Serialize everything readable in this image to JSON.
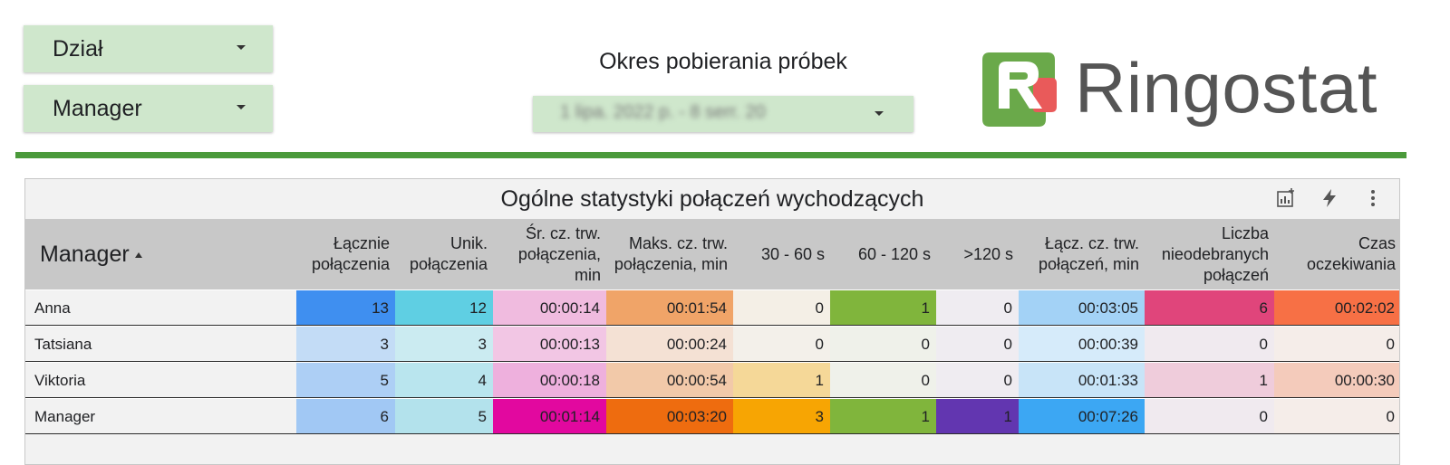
{
  "filters": {
    "department": {
      "label": "Dział"
    },
    "manager": {
      "label": "Manager"
    }
  },
  "period": {
    "label": "Okres pobierania próbek",
    "value": "1 lipa. 2022 p. - 8 serr. 20"
  },
  "logo": {
    "text": "Ringostat",
    "colors": {
      "green": "#6aa94a",
      "red": "#e95a5a"
    }
  },
  "accent_color": "#4b9a3b",
  "table": {
    "title": "Ogólne statystyki połączeń wychodzących",
    "toolbar_icons": [
      "chart-explore-icon",
      "lightning-icon",
      "more-vert-icon"
    ],
    "sort": {
      "column": "Manager",
      "direction": "ascending"
    },
    "columns": [
      "Manager",
      "Łącznie połączenia",
      "Unik. połączenia",
      "Śr. cz. trw. połączenia, min",
      "Maks. cz. trw. połączenia, min",
      "30 - 60 s",
      "60 - 120 s",
      ">120 s",
      "Łącz. cz. trw. połączeń, min",
      "Liczba nieodebranych połączeń",
      "Czas oczekiwania"
    ],
    "rows": [
      {
        "cells": [
          "Anna",
          "13",
          "12",
          "00:00:14",
          "00:01:54",
          "0",
          "1",
          "0",
          "00:03:05",
          "6",
          "00:02:02"
        ],
        "colors": [
          "",
          "#3f8ff0",
          "#5fcfe3",
          "#f0bbdf",
          "#f0a468",
          "#f4efe6",
          "#80b53c",
          "#efecf1",
          "#a3d2f6",
          "#e0457b",
          "#f77045"
        ]
      },
      {
        "cells": [
          "Tatsiana",
          "3",
          "3",
          "00:00:13",
          "00:00:24",
          "0",
          "0",
          "0",
          "00:00:39",
          "0",
          "0"
        ],
        "colors": [
          "",
          "#c3dcf6",
          "#cbebf1",
          "#f2c6e4",
          "#f4e1d4",
          "#f3f0ea",
          "#eff1ea",
          "#efecf1",
          "#d6ebfa",
          "#f0eaef",
          "#f5ede9"
        ]
      },
      {
        "cells": [
          "Viktoria",
          "5",
          "4",
          "00:00:18",
          "00:00:54",
          "1",
          "0",
          "0",
          "00:01:33",
          "1",
          "00:00:30"
        ],
        "colors": [
          "",
          "#adcff5",
          "#b9e5ee",
          "#eeb0dd",
          "#f2c9a9",
          "#f5d898",
          "#eff1ea",
          "#efecf1",
          "#c8e4f8",
          "#efccdb",
          "#f4cbbb"
        ]
      },
      {
        "cells": [
          "Manager",
          "6",
          "5",
          "00:01:14",
          "00:03:20",
          "3",
          "1",
          "1",
          "00:07:26",
          "0",
          "0"
        ],
        "colors": [
          "",
          "#a1c8f4",
          "#b3e2ec",
          "#e2089f",
          "#ee6c0f",
          "#f7a503",
          "#80b53c",
          "#6236b0",
          "#3ca7f3",
          "#f0eaef",
          "#f5ede9"
        ]
      }
    ]
  }
}
